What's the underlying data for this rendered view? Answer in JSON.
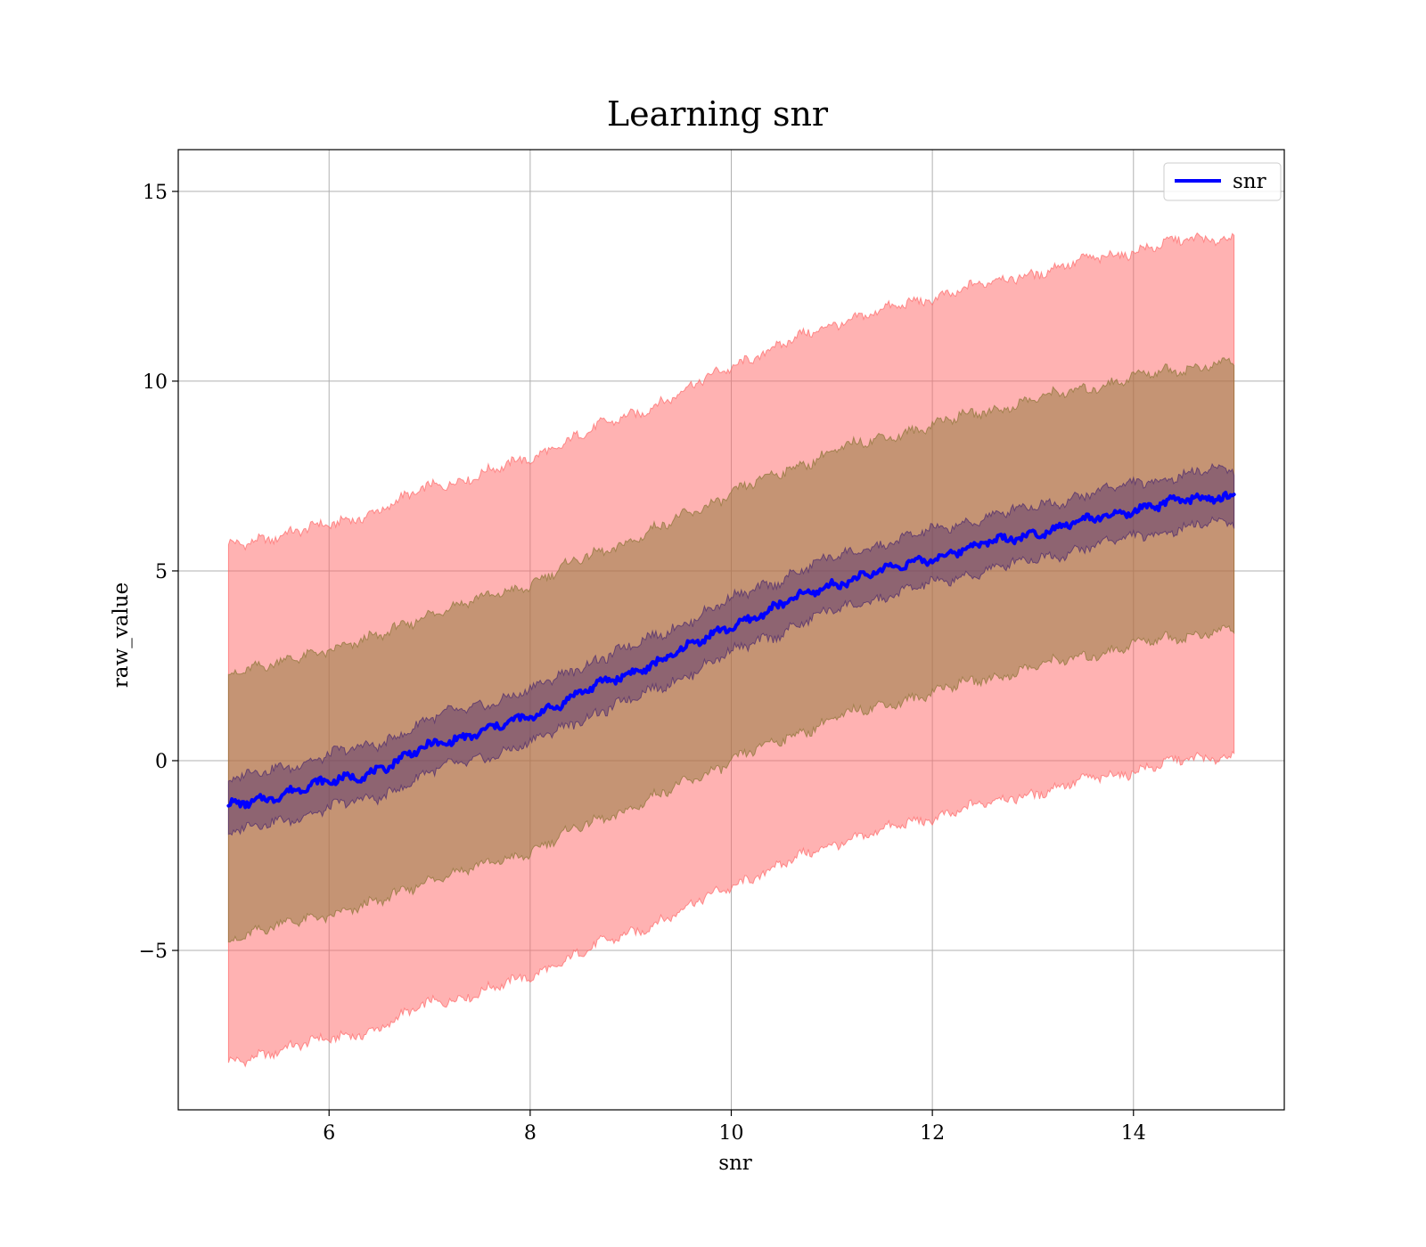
{
  "chart_data": {
    "type": "line",
    "title": "Learning snr",
    "xlabel": "snr",
    "ylabel": "raw_value",
    "xlim": [
      4.5,
      15.5
    ],
    "ylim": [
      -9.2,
      16.1
    ],
    "xticks": [
      {
        "value": 6,
        "label": "6"
      },
      {
        "value": 8,
        "label": "8"
      },
      {
        "value": 10,
        "label": "10"
      },
      {
        "value": 12,
        "label": "12"
      },
      {
        "value": 14,
        "label": "14"
      }
    ],
    "yticks": [
      {
        "value": -5,
        "label": "−5"
      },
      {
        "value": 0,
        "label": "0"
      },
      {
        "value": 5,
        "label": "5"
      },
      {
        "value": 10,
        "label": "10"
      },
      {
        "value": 15,
        "label": "15"
      }
    ],
    "grid": true,
    "legend": {
      "position": "top-right",
      "entries": [
        "snr"
      ]
    },
    "series": [
      {
        "name": "snr",
        "color": "#0000ff",
        "x": [
          5.0,
          5.5,
          6.0,
          6.5,
          7.0,
          7.5,
          8.0,
          8.5,
          9.0,
          9.5,
          10.0,
          10.5,
          11.0,
          11.5,
          12.0,
          12.5,
          13.0,
          13.5,
          14.0,
          14.5,
          15.0
        ],
        "y": [
          -1.2,
          -0.9,
          -0.55,
          -0.25,
          0.4,
          0.75,
          1.15,
          1.8,
          2.3,
          2.9,
          3.55,
          4.1,
          4.65,
          5.0,
          5.35,
          5.7,
          6.0,
          6.3,
          6.6,
          6.85,
          7.0
        ]
      }
    ],
    "bands": [
      {
        "color": "#ff6666",
        "opacity": 0.5,
        "x": [
          5.0,
          5.5,
          6.0,
          6.5,
          7.0,
          7.5,
          8.0,
          8.5,
          9.0,
          9.5,
          10.0,
          10.5,
          11.0,
          11.5,
          12.0,
          12.5,
          13.0,
          13.5,
          14.0,
          14.5,
          15.0
        ],
        "lower": [
          -8.0,
          -7.6,
          -7.35,
          -7.05,
          -6.4,
          -6.1,
          -5.7,
          -5.05,
          -4.55,
          -3.95,
          -3.3,
          -2.75,
          -2.2,
          -1.85,
          -1.5,
          -1.15,
          -0.85,
          -0.55,
          -0.25,
          0.0,
          0.15
        ],
        "upper": [
          5.65,
          5.95,
          6.2,
          6.6,
          7.2,
          7.55,
          7.95,
          8.6,
          9.1,
          9.7,
          10.4,
          10.95,
          11.5,
          11.85,
          12.2,
          12.55,
          12.85,
          13.15,
          13.45,
          13.7,
          13.8
        ]
      },
      {
        "color": "#8b7536",
        "opacity": 0.5,
        "x": [
          5.0,
          5.5,
          6.0,
          6.5,
          7.0,
          7.5,
          8.0,
          8.5,
          9.0,
          9.5,
          10.0,
          10.5,
          11.0,
          11.5,
          12.0,
          12.5,
          13.0,
          13.5,
          14.0,
          14.5,
          15.0
        ],
        "lower": [
          -4.7,
          -4.35,
          -4.05,
          -3.75,
          -3.1,
          -2.8,
          -2.4,
          -1.75,
          -1.25,
          -0.65,
          0.0,
          0.55,
          1.1,
          1.45,
          1.8,
          2.15,
          2.45,
          2.75,
          3.05,
          3.3,
          3.45
        ],
        "upper": [
          2.35,
          2.55,
          2.95,
          3.25,
          3.9,
          4.25,
          4.65,
          5.3,
          5.8,
          6.4,
          7.05,
          7.6,
          8.15,
          8.5,
          8.85,
          9.2,
          9.5,
          9.8,
          10.1,
          10.35,
          10.5
        ]
      },
      {
        "color": "#4b2a6e",
        "opacity": 0.45,
        "x": [
          5.0,
          5.5,
          6.0,
          6.5,
          7.0,
          7.5,
          8.0,
          8.5,
          9.0,
          9.5,
          10.0,
          10.5,
          11.0,
          11.5,
          12.0,
          12.5,
          13.0,
          13.5,
          14.0,
          14.5,
          15.0
        ],
        "lower": [
          -1.9,
          -1.6,
          -1.25,
          -0.95,
          -0.3,
          0.05,
          0.45,
          1.1,
          1.6,
          2.2,
          2.85,
          3.4,
          3.95,
          4.3,
          4.65,
          5.0,
          5.3,
          5.6,
          5.9,
          6.15,
          6.3
        ],
        "upper": [
          -0.5,
          -0.2,
          0.15,
          0.45,
          1.1,
          1.45,
          1.85,
          2.5,
          3.0,
          3.6,
          4.25,
          4.8,
          5.35,
          5.7,
          6.05,
          6.4,
          6.7,
          7.0,
          7.3,
          7.55,
          7.7
        ]
      }
    ]
  }
}
